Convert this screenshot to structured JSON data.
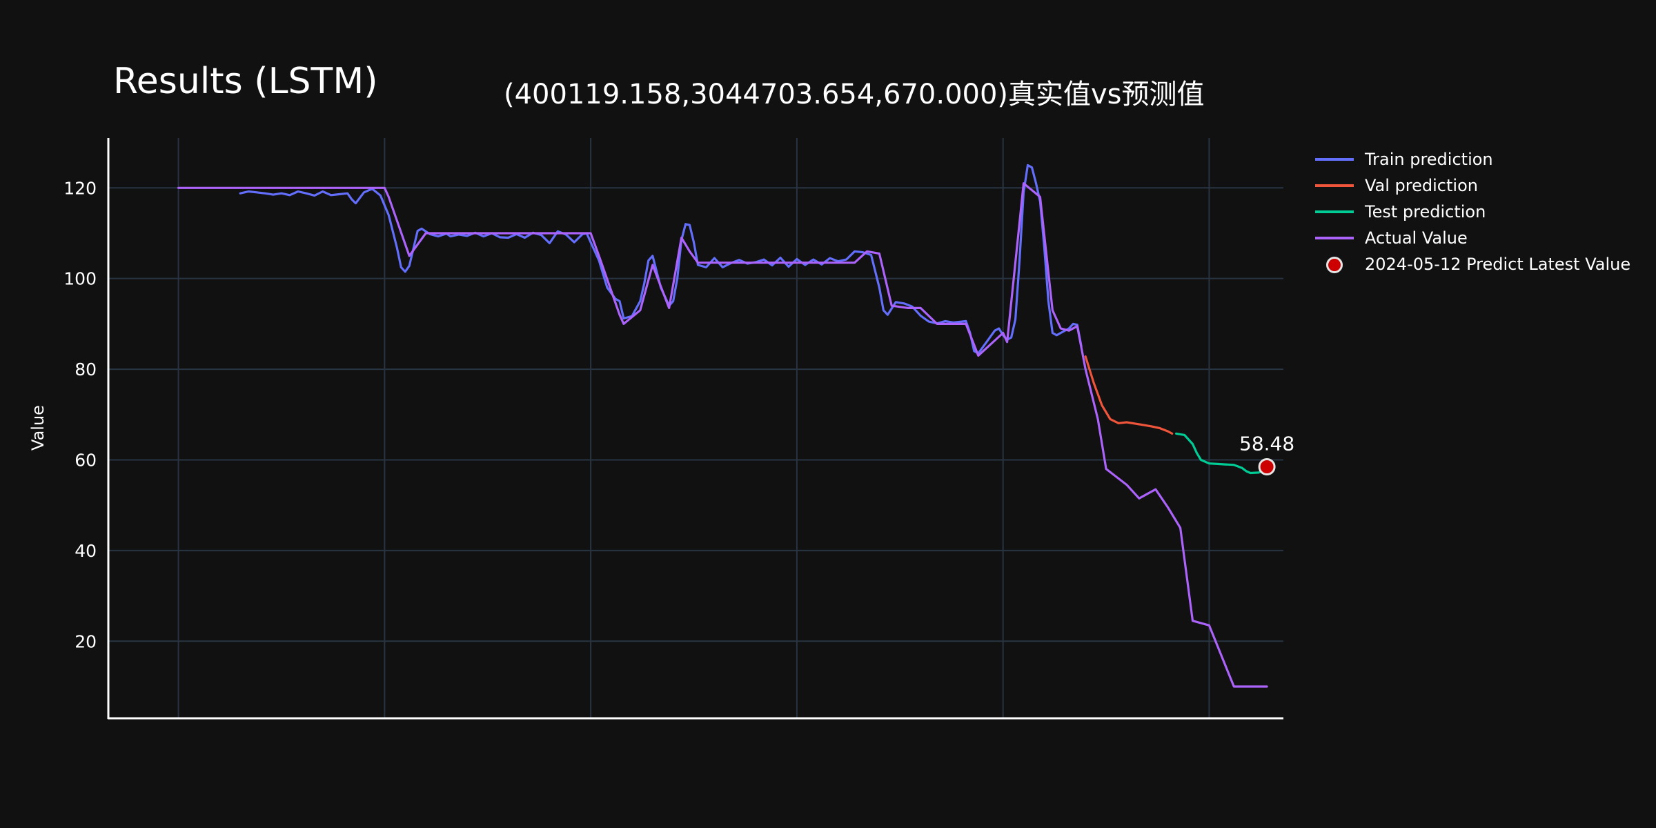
{
  "chart_data": {
    "type": "line",
    "title": "Results (LSTM)",
    "subtitle": "(400119.158,3044703.654,670.000)真实值vs预测值",
    "xlabel": "",
    "ylabel": "Value",
    "ylim": [
      3,
      131
    ],
    "xlim": [
      -17,
      268
    ],
    "yticks": [
      20,
      40,
      60,
      80,
      100,
      120
    ],
    "grid": true,
    "legend_position": "top-right",
    "series": [
      {
        "name": "Train prediction",
        "color": "#636efa",
        "points": [
          [
            15,
            118.8
          ],
          [
            17,
            119.2
          ],
          [
            19,
            119
          ],
          [
            21,
            118.8
          ],
          [
            23,
            118.5
          ],
          [
            25,
            118.8
          ],
          [
            27,
            118.4
          ],
          [
            29,
            119.2
          ],
          [
            31,
            118.8
          ],
          [
            33,
            118.3
          ],
          [
            35,
            119.2
          ],
          [
            37,
            118.4
          ],
          [
            39,
            118.6
          ],
          [
            41,
            118.8
          ],
          [
            42,
            117.5
          ],
          [
            43,
            116.6
          ],
          [
            45,
            119
          ],
          [
            47,
            119.8
          ],
          [
            49,
            118.3
          ],
          [
            51,
            114
          ],
          [
            53,
            106.8
          ],
          [
            54,
            102.5
          ],
          [
            55,
            101.5
          ],
          [
            56,
            102.8
          ],
          [
            58,
            110.5
          ],
          [
            59,
            111
          ],
          [
            61,
            109.8
          ],
          [
            63,
            109.3
          ],
          [
            65,
            109.9
          ],
          [
            66,
            109.3
          ],
          [
            68,
            109.7
          ],
          [
            70,
            109.4
          ],
          [
            72,
            110.1
          ],
          [
            74,
            109.3
          ],
          [
            76,
            110
          ],
          [
            78,
            109.1
          ],
          [
            80,
            109
          ],
          [
            82,
            109.8
          ],
          [
            84,
            109
          ],
          [
            86,
            110.1
          ],
          [
            88,
            109.6
          ],
          [
            90,
            107.8
          ],
          [
            92,
            110.4
          ],
          [
            94,
            109.7
          ],
          [
            96,
            108
          ],
          [
            98,
            109.8
          ],
          [
            99,
            110
          ],
          [
            100,
            108
          ],
          [
            102,
            104
          ],
          [
            104,
            98
          ],
          [
            106,
            95.5
          ],
          [
            107,
            95
          ],
          [
            108,
            91.2
          ],
          [
            110,
            91.7
          ],
          [
            112,
            95
          ],
          [
            113,
            99
          ],
          [
            114,
            104
          ],
          [
            115,
            105
          ],
          [
            117,
            98
          ],
          [
            119,
            94
          ],
          [
            120,
            95
          ],
          [
            121,
            100
          ],
          [
            122,
            108.5
          ],
          [
            123,
            112
          ],
          [
            124,
            111.8
          ],
          [
            125,
            108
          ],
          [
            126,
            103
          ],
          [
            128,
            102.5
          ],
          [
            130,
            104.5
          ],
          [
            132,
            102.5
          ],
          [
            134,
            103.4
          ],
          [
            136,
            104.1
          ],
          [
            138,
            103.3
          ],
          [
            140,
            103.6
          ],
          [
            142,
            104.2
          ],
          [
            144,
            102.9
          ],
          [
            146,
            104.6
          ],
          [
            148,
            102.6
          ],
          [
            150,
            104.3
          ],
          [
            152,
            103
          ],
          [
            154,
            104.2
          ],
          [
            156,
            103.1
          ],
          [
            158,
            104.5
          ],
          [
            160,
            103.8
          ],
          [
            162,
            104.2
          ],
          [
            164,
            106
          ],
          [
            166,
            105.8
          ],
          [
            168,
            105.2
          ],
          [
            170,
            98
          ],
          [
            171,
            93
          ],
          [
            172,
            92
          ],
          [
            174,
            94.8
          ],
          [
            176,
            94.5
          ],
          [
            178,
            93.8
          ],
          [
            180,
            91.8
          ],
          [
            182,
            90.5
          ],
          [
            184,
            90.1
          ],
          [
            186,
            90.6
          ],
          [
            188,
            90.3
          ],
          [
            190,
            90.5
          ],
          [
            191,
            90.6
          ],
          [
            192,
            88
          ],
          [
            193,
            84
          ],
          [
            194,
            83.5
          ],
          [
            196,
            86
          ],
          [
            198,
            88.5
          ],
          [
            199,
            89
          ],
          [
            200,
            87.5
          ],
          [
            201,
            86.5
          ],
          [
            202,
            87
          ],
          [
            203,
            91
          ],
          [
            204,
            104
          ],
          [
            205,
            119
          ],
          [
            206,
            125
          ],
          [
            207,
            124.5
          ],
          [
            208,
            121
          ],
          [
            209,
            117
          ],
          [
            210,
            107
          ],
          [
            211,
            95
          ],
          [
            212,
            88
          ],
          [
            213,
            87.5
          ],
          [
            214,
            88
          ],
          [
            216,
            89
          ],
          [
            217,
            90
          ],
          [
            218,
            89.8
          ],
          [
            219,
            85
          ]
        ]
      },
      {
        "name": "Val prediction",
        "color": "#ef553b",
        "points": [
          [
            220,
            82.8
          ],
          [
            222,
            77
          ],
          [
            224,
            72
          ],
          [
            225,
            70.5
          ],
          [
            226,
            69
          ],
          [
            228,
            68.1
          ],
          [
            230,
            68.3
          ],
          [
            232,
            68
          ],
          [
            236,
            67.4
          ],
          [
            238,
            67
          ],
          [
            240,
            66.3
          ],
          [
            241,
            65.8
          ]
        ]
      },
      {
        "name": "Test prediction",
        "color": "#00cc96",
        "points": [
          [
            242,
            65.8
          ],
          [
            244,
            65.5
          ],
          [
            246,
            63.5
          ],
          [
            247,
            61.5
          ],
          [
            248,
            60
          ],
          [
            250,
            59.2
          ],
          [
            252,
            59.1
          ],
          [
            254,
            59
          ],
          [
            256,
            58.9
          ],
          [
            258,
            58.2
          ],
          [
            259,
            57.5
          ],
          [
            260,
            57.1
          ],
          [
            262,
            57.2
          ],
          [
            264,
            58
          ]
        ]
      },
      {
        "name": "Actual Value",
        "color": "#ab63fa",
        "points": [
          [
            0,
            120
          ],
          [
            50,
            120
          ],
          [
            51,
            118
          ],
          [
            56,
            105
          ],
          [
            60,
            110
          ],
          [
            100,
            110
          ],
          [
            102,
            105
          ],
          [
            107,
            92
          ],
          [
            108,
            90
          ],
          [
            112,
            93
          ],
          [
            115,
            103
          ],
          [
            119,
            93.5
          ],
          [
            122,
            109
          ],
          [
            124,
            106
          ],
          [
            126,
            103.5
          ],
          [
            164,
            103.5
          ],
          [
            167,
            106
          ],
          [
            170,
            105.5
          ],
          [
            173,
            94
          ],
          [
            177,
            93.5
          ],
          [
            180,
            93.5
          ],
          [
            184,
            90
          ],
          [
            191,
            90
          ],
          [
            194,
            83
          ],
          [
            200,
            88
          ],
          [
            201,
            86
          ],
          [
            205,
            121
          ],
          [
            209,
            118
          ],
          [
            212,
            93
          ],
          [
            214,
            89
          ],
          [
            216,
            88.5
          ],
          [
            218,
            89.5
          ],
          [
            220,
            80
          ],
          [
            223,
            69
          ],
          [
            225,
            58
          ],
          [
            230,
            54.5
          ],
          [
            233,
            51.5
          ],
          [
            237,
            53.5
          ],
          [
            240,
            49.5
          ],
          [
            243,
            45
          ],
          [
            246,
            24.5
          ],
          [
            250,
            23.5
          ],
          [
            254,
            14.5
          ],
          [
            256,
            10
          ],
          [
            264,
            10
          ]
        ]
      }
    ],
    "marker": {
      "name": "2024-05-12 Predict Latest Value",
      "x": 264,
      "y": 58.48,
      "label": "58.48",
      "color": "#cc0000"
    }
  }
}
